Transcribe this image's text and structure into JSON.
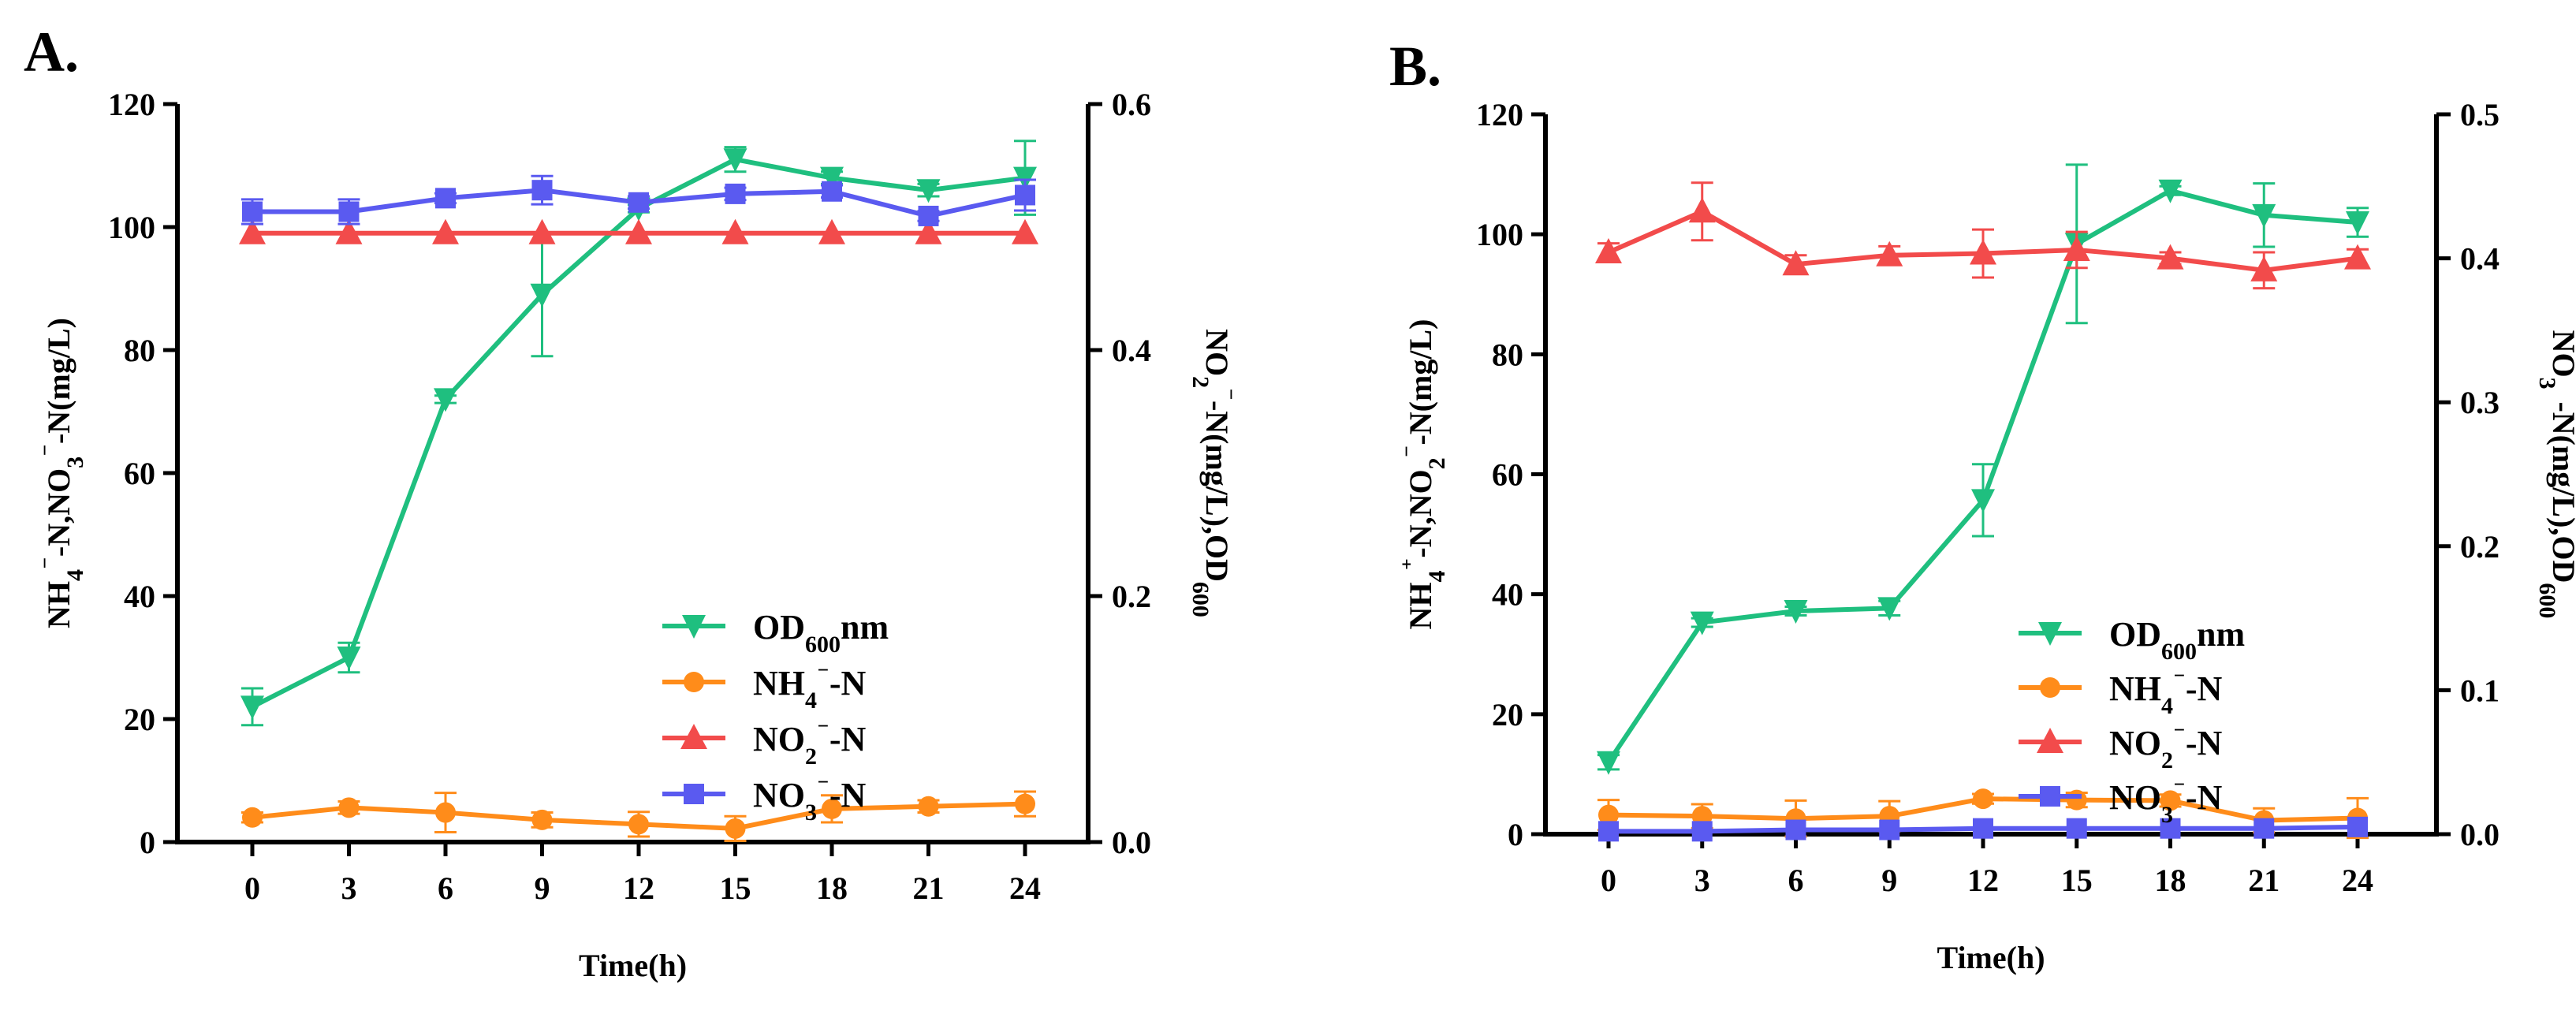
{
  "colors": {
    "od": "#1fbf7f",
    "nh4": "#ff8c1a",
    "no2": "#f24b4b",
    "no3": "#5a5af0",
    "axis": "#000000"
  },
  "chart_data": [
    {
      "panel_label": "A.",
      "type": "line",
      "x": [
        0,
        3,
        6,
        9,
        12,
        15,
        18,
        21,
        24
      ],
      "xlabel": "Time(h)",
      "ylabel_left": "NH4⁻-N,NO3⁻-N(mg/L)",
      "ylabel_right": "NO2⁻-N(mg/L),OD600",
      "ylim_left": [
        0,
        120
      ],
      "yticks_left": [
        "0",
        "20",
        "40",
        "60",
        "80",
        "100",
        "120"
      ],
      "ylim_right": [
        0,
        0.6
      ],
      "yticks_right": [
        "0.0",
        "0.2",
        "0.4",
        "0.6"
      ],
      "legend_position": "center-right",
      "series": [
        {
          "key": "od",
          "name": "OD600nm",
          "axis": "right",
          "marker": "triangle-down",
          "values": [
            0.11,
            0.15,
            0.36,
            0.445,
            0.515,
            0.555,
            0.54,
            0.53,
            0.54
          ],
          "errors": [
            0.015,
            0.012,
            0.003,
            0.05,
            0.003,
            0.01,
            0.005,
            0.005,
            0.03
          ]
        },
        {
          "key": "nh4",
          "name": "NH4⁻-N",
          "axis": "left",
          "marker": "circle",
          "values": [
            4.0,
            5.6,
            4.8,
            3.6,
            2.9,
            2.2,
            5.4,
            5.8,
            6.2
          ],
          "errors": [
            0.8,
            1.0,
            3.2,
            1.2,
            2.0,
            2.0,
            2.2,
            1.0,
            2.0
          ]
        },
        {
          "key": "no2",
          "name": "NO2⁻-N",
          "axis": "left",
          "marker": "triangle-up",
          "values": [
            99,
            99,
            99,
            99,
            99,
            99,
            99,
            99,
            99
          ],
          "errors": [
            0,
            0,
            0,
            0,
            0,
            0,
            0,
            0,
            0
          ]
        },
        {
          "key": "no3",
          "name": "NO3⁻-N",
          "axis": "left",
          "marker": "square",
          "values": [
            102.5,
            102.5,
            104.7,
            106,
            104,
            105.4,
            105.8,
            101.8,
            105.2
          ],
          "errors": [
            2.0,
            2.0,
            0.8,
            2.3,
            1.0,
            1.0,
            1.0,
            0.8,
            2.5
          ]
        }
      ]
    },
    {
      "panel_label": "B.",
      "type": "line",
      "x": [
        0,
        3,
        6,
        9,
        12,
        15,
        18,
        21,
        24
      ],
      "xlabel": "Time(h)",
      "ylabel_left": "NH4⁺-N,NO2⁻-N(mg/L)",
      "ylabel_right": "NO3⁻-N(mg/L),OD600",
      "ylim_left": [
        0,
        120
      ],
      "yticks_left": [
        "0",
        "20",
        "40",
        "60",
        "80",
        "100",
        "120"
      ],
      "ylim_right": [
        0,
        0.5
      ],
      "yticks_right": [
        "0.0",
        "0.1",
        "0.2",
        "0.3",
        "0.4",
        "0.5"
      ],
      "legend_position": "center-right",
      "series": [
        {
          "key": "od",
          "name": "OD600nm",
          "axis": "right",
          "marker": "triangle-down",
          "values": [
            0.05,
            0.147,
            0.155,
            0.157,
            0.232,
            0.41,
            0.447,
            0.43,
            0.425
          ],
          "errors": [
            0.005,
            0.003,
            0.003,
            0.005,
            0.025,
            0.055,
            0.003,
            0.022,
            0.01
          ]
        },
        {
          "key": "nh4",
          "name": "NH4⁻-N",
          "axis": "left",
          "marker": "circle",
          "values": [
            3.2,
            3.0,
            2.6,
            3.0,
            5.9,
            5.7,
            5.6,
            2.3,
            2.7
          ],
          "errors": [
            2.5,
            2.0,
            3.0,
            2.5,
            0.8,
            1.2,
            1.0,
            2.0,
            3.3
          ]
        },
        {
          "key": "no2",
          "name": "NO2⁻-N",
          "axis": "left",
          "marker": "triangle-up",
          "values": [
            97,
            103.8,
            95,
            96.5,
            96.8,
            97.4,
            96,
            94,
            96
          ],
          "errors": [
            1.5,
            4.8,
            1.5,
            1.5,
            4.0,
            3.0,
            1.0,
            3.0,
            1.5
          ]
        },
        {
          "key": "no3",
          "name": "NO3⁻-N",
          "axis": "right",
          "marker": "square",
          "values": [
            0.002,
            0.002,
            0.003,
            0.003,
            0.004,
            0.004,
            0.004,
            0.004,
            0.005
          ],
          "errors": [
            0,
            0,
            0,
            0,
            0,
            0,
            0,
            0,
            0
          ]
        }
      ]
    }
  ]
}
